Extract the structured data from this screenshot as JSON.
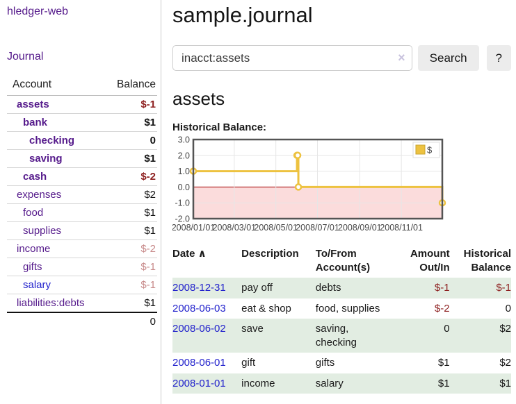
{
  "app": {
    "title": "hledger-web"
  },
  "sidebar": {
    "nav_journal": "Journal",
    "table": {
      "col_account": "Account",
      "col_balance": "Balance",
      "rows": [
        {
          "name": "assets",
          "depth": 0,
          "focus": true,
          "link": "purple",
          "balance": "$-1",
          "tone": "neg"
        },
        {
          "name": "bank",
          "depth": 1,
          "focus": true,
          "link": "purple",
          "balance": "$1",
          "tone": "pos"
        },
        {
          "name": "checking",
          "depth": 2,
          "focus": true,
          "link": "purple",
          "balance": "0",
          "tone": "pos"
        },
        {
          "name": "saving",
          "depth": 2,
          "focus": true,
          "link": "purple",
          "balance": "$1",
          "tone": "pos"
        },
        {
          "name": "cash",
          "depth": 1,
          "focus": true,
          "link": "purple",
          "balance": "$-2",
          "tone": "neg"
        },
        {
          "name": "expenses",
          "depth": 0,
          "focus": false,
          "link": "purple",
          "balance": "$2",
          "tone": "pos"
        },
        {
          "name": "food",
          "depth": 1,
          "focus": false,
          "link": "purple",
          "balance": "$1",
          "tone": "pos"
        },
        {
          "name": "supplies",
          "depth": 1,
          "focus": false,
          "link": "purple",
          "balance": "$1",
          "tone": "pos"
        },
        {
          "name": "income",
          "depth": 0,
          "focus": false,
          "link": "purple",
          "balance": "$-2",
          "tone": "negmuted"
        },
        {
          "name": "gifts",
          "depth": 1,
          "focus": false,
          "link": "purple",
          "balance": "$-1",
          "tone": "negmuted"
        },
        {
          "name": "salary",
          "depth": 1,
          "focus": false,
          "link": "blue",
          "balance": "$-1",
          "tone": "negmuted"
        },
        {
          "name": "liabilities:debts",
          "depth": 0,
          "focus": false,
          "link": "purple",
          "balance": "$1",
          "tone": "pos"
        }
      ],
      "total": "0"
    }
  },
  "main": {
    "title": "sample.journal",
    "search": {
      "query": "inacct:assets",
      "clear": "×",
      "button": "Search",
      "help": "?"
    },
    "heading": "assets",
    "chart_label": "Historical Balance:"
  },
  "chart_data": {
    "type": "line",
    "step": true,
    "title": "Historical Balance",
    "x_range": [
      "2008-01-01",
      "2008-12-31"
    ],
    "ylim": [
      -2,
      3
    ],
    "yticks": [
      3,
      2,
      1,
      0,
      -1,
      -2
    ],
    "xticks": [
      {
        "date": "2008-01-01",
        "label": "2008/01/01"
      },
      {
        "date": "2008-03-01",
        "label": "2008/03/01"
      },
      {
        "date": "2008-05-01",
        "label": "2008/05/01"
      },
      {
        "date": "2008-07-01",
        "label": "2008/07/01"
      },
      {
        "date": "2008-09-01",
        "label": "2008/09/01"
      },
      {
        "date": "2008-11-01",
        "label": "2008/11/01"
      }
    ],
    "series": [
      {
        "name": "$",
        "color": "#edc240",
        "points": [
          [
            "2008-01-01",
            1
          ],
          [
            "2008-06-01",
            2
          ],
          [
            "2008-06-02",
            2
          ],
          [
            "2008-06-03",
            0
          ],
          [
            "2008-12-31",
            -1
          ]
        ]
      }
    ],
    "negative_fill": "#fbdcdc",
    "zero_line_color": "#a40000",
    "grid_color": "#e6e6e6",
    "border_color": "#545454",
    "legend_position": "top-right"
  },
  "transactions": {
    "headers": [
      {
        "line1": "Date",
        "line2": "",
        "sort": "∧",
        "align": "left"
      },
      {
        "line1": "Description",
        "line2": "",
        "sort": "",
        "align": "left"
      },
      {
        "line1": "To/From",
        "line2": "Account(s)",
        "sort": "",
        "align": "left"
      },
      {
        "line1": "Amount",
        "line2": "Out/In",
        "sort": "",
        "align": "right"
      },
      {
        "line1": "Historical",
        "line2": "Balance",
        "sort": "",
        "align": "right"
      }
    ],
    "rows": [
      {
        "date": "2008-12-31",
        "description": "pay off",
        "accounts": "debts",
        "amount": "$-1",
        "amount_tone": "neg",
        "balance": "$-1",
        "balance_tone": "neg"
      },
      {
        "date": "2008-06-03",
        "description": "eat & shop",
        "accounts": "food, supplies",
        "amount": "$-2",
        "amount_tone": "neg",
        "balance": "0",
        "balance_tone": "pos"
      },
      {
        "date": "2008-06-02",
        "description": "save",
        "accounts": "saving,\nchecking",
        "amount": "0",
        "amount_tone": "pos",
        "balance": "$2",
        "balance_tone": "pos"
      },
      {
        "date": "2008-06-01",
        "description": "gift",
        "accounts": "gifts",
        "amount": "$1",
        "amount_tone": "pos",
        "balance": "$2",
        "balance_tone": "pos"
      },
      {
        "date": "2008-01-01",
        "description": "income",
        "accounts": "salary",
        "amount": "$1",
        "amount_tone": "pos",
        "balance": "$1",
        "balance_tone": "pos"
      }
    ]
  }
}
